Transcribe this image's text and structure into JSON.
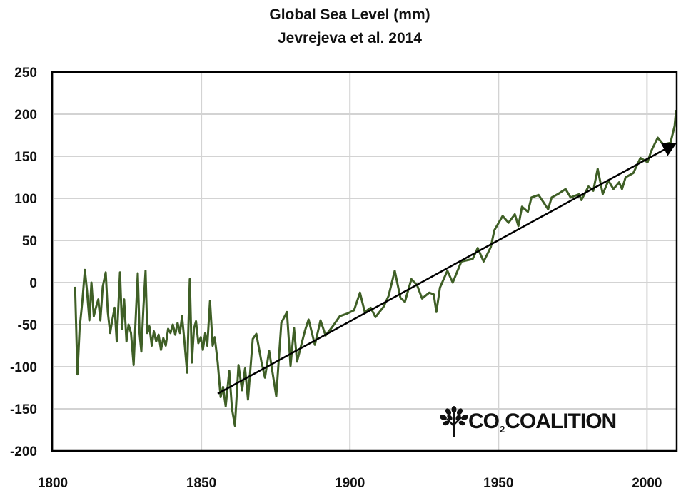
{
  "chart_data": {
    "type": "line",
    "title": "Global Sea Level (mm)",
    "subtitle": "Jevrejeva et al. 2014",
    "xlabel": "",
    "ylabel": "",
    "xlim": [
      1800,
      2010
    ],
    "ylim": [
      -200,
      250
    ],
    "x_ticks": [
      1800,
      1850,
      1900,
      1950,
      2000
    ],
    "y_ticks": [
      250,
      200,
      150,
      100,
      50,
      0,
      -50,
      -100,
      -150,
      -200
    ],
    "grid": true,
    "legend": "none",
    "colors": {
      "series": "#3f5f26",
      "trend": "#000000",
      "grid": "#d3d3d3"
    },
    "series": [
      {
        "x": [
          1807.5,
          1808.3,
          1809,
          1810,
          1810.8,
          1811.5,
          1812.3,
          1813,
          1813.8,
          1814.5,
          1815.3,
          1816,
          1816.8,
          1817.8,
          1818.5,
          1819.3,
          1820,
          1820.8,
          1821.5,
          1822.6,
          1823.3,
          1824,
          1824.8,
          1825.5,
          1826.3,
          1827.2,
          1827.8,
          1828.6,
          1829.2,
          1829.8,
          1830.5,
          1831.2,
          1831.8,
          1832.5,
          1833.3,
          1834,
          1834.8,
          1835.6,
          1836.4,
          1837.2,
          1838,
          1838.8,
          1839.6,
          1840.4,
          1841.2,
          1842,
          1842.8,
          1843.5,
          1844.3,
          1845.2,
          1846.1,
          1846.8,
          1847.5,
          1848.2,
          1849,
          1849.8,
          1850.5,
          1851.3,
          1852,
          1852.9,
          1853.8,
          1854.5,
          1855.5,
          1856.5,
          1857.3,
          1858.2,
          1859.4,
          1860.3,
          1861.3,
          1862.5,
          1863.7,
          1864.7,
          1865.7,
          1867.3,
          1868.5,
          1870.2,
          1871.4,
          1872.8,
          1875.2,
          1876.9,
          1878.8,
          1880,
          1881.2,
          1882.2,
          1883.7,
          1884.9,
          1886.1,
          1888.2,
          1890.1,
          1891.8,
          1894.2,
          1896.6,
          1899,
          1901.4,
          1903.4,
          1905,
          1907,
          1908.6,
          1911.3,
          1913,
          1915.1,
          1917,
          1918.5,
          1920.7,
          1922.6,
          1924.3,
          1926.7,
          1928.2,
          1929.1,
          1930.3,
          1932.8,
          1934.6,
          1937.5,
          1941.3,
          1943,
          1945,
          1947.4,
          1948.6,
          1951.4,
          1953.4,
          1955.5,
          1956.7,
          1957.9,
          1959.9,
          1961.1,
          1963.5,
          1966.7,
          1967.9,
          1970,
          1972.6,
          1974.3,
          1977.2,
          1977.9,
          1980.3,
          1981.9,
          1983.4,
          1985.1,
          1987,
          1988.7,
          1990.6,
          1991.6,
          1992.8,
          1995.4,
          1997.8,
          2000.2,
          2001.4,
          2003.6,
          2005.5,
          2007.9,
          2009.3,
          2009.8
        ],
        "y": [
          -5,
          -109,
          -55,
          -20,
          15,
          -10,
          -45,
          0,
          -40,
          -30,
          -20,
          -45,
          -5,
          12,
          -35,
          -60,
          -45,
          -30,
          -70,
          12,
          -55,
          -20,
          -70,
          -50,
          -60,
          -98,
          -50,
          11,
          -60,
          -82,
          -30,
          14,
          -60,
          -52,
          -75,
          -58,
          -70,
          -62,
          -80,
          -66,
          -75,
          -55,
          -60,
          -50,
          -62,
          -48,
          -60,
          -40,
          -70,
          -107,
          4,
          -95,
          -55,
          -46,
          -72,
          -65,
          -80,
          -60,
          -75,
          -22,
          -75,
          -65,
          -95,
          -136,
          -124,
          -147,
          -105,
          -150,
          -170,
          -98,
          -128,
          -102,
          -139,
          -67,
          -61,
          -94,
          -113,
          -81,
          -135,
          -48,
          -35,
          -99,
          -54,
          -94,
          -73,
          -57,
          -44,
          -74,
          -45,
          -63,
          -52,
          -40,
          -37,
          -33,
          -12,
          -35,
          -30,
          -41,
          -29,
          -16,
          14,
          -18,
          -23,
          4,
          -3,
          -19,
          -12,
          -14,
          -35,
          -6,
          14,
          0,
          25,
          28,
          41,
          25,
          42,
          62,
          79,
          71,
          81,
          67,
          90,
          84,
          101,
          104,
          87,
          101,
          105,
          111,
          101,
          105,
          98,
          114,
          109,
          135,
          105,
          121,
          111,
          119,
          111,
          125,
          130,
          148,
          143,
          156,
          172,
          164,
          166,
          186,
          205
        ]
      }
    ],
    "trend_arrow": {
      "from": [
        1855.5,
        -132
      ],
      "to": [
        2009,
        164
      ]
    }
  },
  "logo": {
    "text_before_sub": "CO",
    "sub": "2",
    "text_after_sub": "COALITION"
  }
}
